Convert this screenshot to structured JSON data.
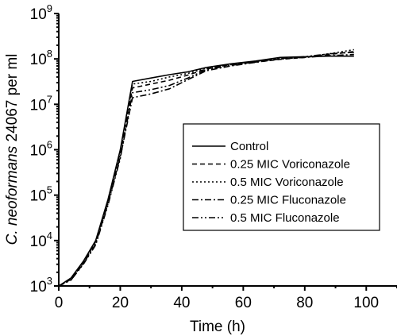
{
  "chart_data": {
    "type": "line",
    "xlabel": "Time (h)",
    "ylabel_italic": "C. neoformans",
    "ylabel_rest": " 24067 per ml",
    "x_ticks": [
      0,
      20,
      40,
      60,
      80,
      100
    ],
    "xlim": [
      0,
      110
    ],
    "y_scale": "log",
    "ylim": [
      1000,
      1000000000
    ],
    "y_tick_exponents": [
      3,
      4,
      5,
      6,
      7,
      8,
      9
    ],
    "y_tick_base": "10",
    "grid": false,
    "legend_position": "center-right",
    "series": [
      {
        "name": "Control",
        "dash": "",
        "x": [
          0,
          4,
          8,
          12,
          16,
          20,
          24,
          30,
          36,
          42,
          48,
          56,
          64,
          72,
          80,
          88,
          96
        ],
        "y": [
          1000,
          1500,
          3500,
          10000,
          80000,
          1000000,
          32000000,
          38000000,
          45000000,
          52000000,
          65000000,
          78000000,
          90000000,
          108000000,
          112000000,
          115000000,
          115000000
        ]
      },
      {
        "name": "0.25 MIC Voriconazole",
        "dash": "6,4",
        "x": [
          0,
          4,
          8,
          12,
          16,
          20,
          24,
          30,
          36,
          42,
          48,
          56,
          64,
          72,
          80,
          88,
          96
        ],
        "y": [
          1000,
          1400,
          3300,
          9500,
          75000,
          900000,
          23000000,
          28000000,
          34000000,
          44000000,
          60000000,
          75000000,
          85000000,
          98000000,
          108000000,
          125000000,
          145000000
        ]
      },
      {
        "name": "0.5 MIC Voriconazole",
        "dash": "2,3",
        "x": [
          0,
          4,
          8,
          12,
          16,
          20,
          24,
          30,
          36,
          42,
          48,
          56,
          64,
          72,
          80,
          88,
          96
        ],
        "y": [
          1000,
          1400,
          3200,
          9000,
          70000,
          800000,
          28000000,
          32000000,
          40000000,
          48000000,
          62000000,
          76000000,
          88000000,
          100000000,
          110000000,
          130000000,
          160000000
        ]
      },
      {
        "name": "0.25 MIC Fluconazole",
        "dash": "8,3,2,3",
        "x": [
          0,
          4,
          8,
          12,
          16,
          20,
          24,
          30,
          36,
          42,
          48,
          56,
          64,
          72,
          80,
          88,
          96
        ],
        "y": [
          1000,
          1350,
          3100,
          8500,
          65000,
          700000,
          14000000,
          17000000,
          22000000,
          35000000,
          55000000,
          70000000,
          84000000,
          100000000,
          108000000,
          118000000,
          125000000
        ]
      },
      {
        "name": "0.5 MIC Fluconazole",
        "dash": "8,3,2,3,2,3",
        "x": [
          0,
          4,
          8,
          12,
          16,
          20,
          24,
          30,
          36,
          42,
          48,
          56,
          64,
          72,
          80,
          88,
          96
        ],
        "y": [
          1000,
          1350,
          3000,
          8000,
          60000,
          650000,
          18000000,
          21000000,
          26000000,
          38000000,
          58000000,
          72000000,
          86000000,
          102000000,
          112000000,
          130000000,
          140000000
        ]
      }
    ]
  }
}
